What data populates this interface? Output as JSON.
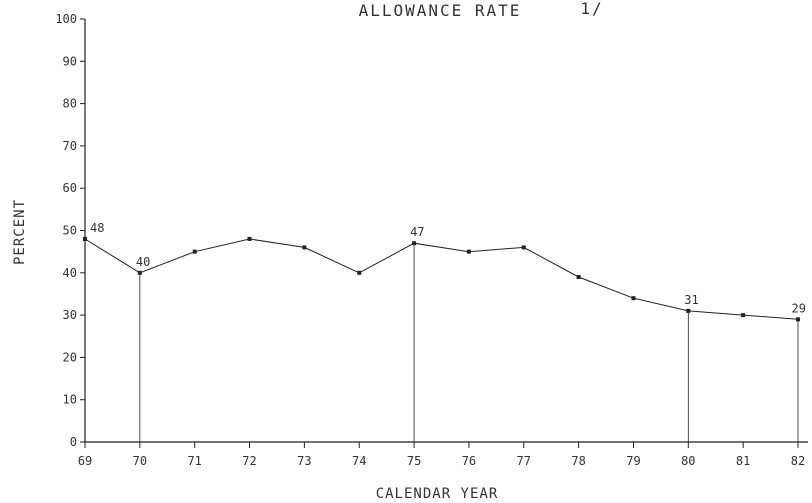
{
  "chart_data": {
    "type": "line",
    "title": "ALLOWANCE RATE",
    "title_note": "1/",
    "xlabel": "CALENDAR YEAR",
    "ylabel": "PERCENT",
    "x": [
      "69",
      "70",
      "71",
      "72",
      "73",
      "74",
      "75",
      "76",
      "77",
      "78",
      "79",
      "80",
      "81",
      "82"
    ],
    "y_ticks": [
      "0",
      "10",
      "20",
      "30",
      "40",
      "50",
      "60",
      "70",
      "80",
      "90",
      "100"
    ],
    "series": [
      {
        "values": [
          48,
          40,
          45,
          48,
          46,
          40,
          47,
          45,
          46,
          39,
          34,
          31,
          30,
          29
        ]
      }
    ],
    "data_labels": [
      {
        "x": "69",
        "text": "48"
      },
      {
        "x": "70",
        "text": "40"
      },
      {
        "x": "75",
        "text": "47"
      },
      {
        "x": "80",
        "text": "31"
      },
      {
        "x": "82",
        "text": "29"
      }
    ],
    "drop_lines_at": [
      "70",
      "75",
      "80",
      "82"
    ],
    "xlim": [
      69,
      82
    ],
    "ylim": [
      0,
      100
    ],
    "grid": false,
    "colors": {
      "line": "#222222",
      "axis": "#222222",
      "text": "#333333"
    }
  }
}
